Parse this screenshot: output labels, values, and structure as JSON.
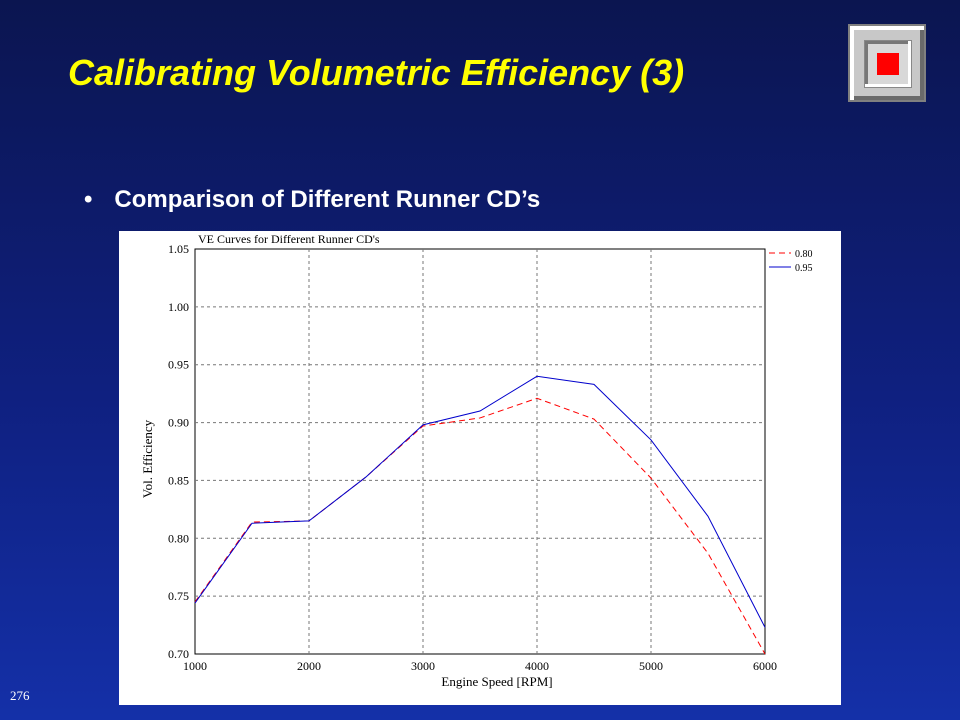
{
  "slide": {
    "title": "Calibrating Volumetric Efficiency (3)",
    "bullet_marker": "•",
    "bullet_text": "Comparison of Different Runner CD’s",
    "page_number": "276",
    "nav_button_icon": "stop-icon",
    "colors": {
      "title": "#ffff00",
      "nav_stop": "#ff0000"
    }
  },
  "chart_data": {
    "type": "line",
    "title": "VE Curves for Different Runner CD's",
    "xlabel": "Engine Speed [RPM]",
    "ylabel": "Vol. Efficiency",
    "xlim": [
      1000,
      6000
    ],
    "ylim": [
      0.7,
      1.05
    ],
    "xticks": [
      1000,
      2000,
      3000,
      4000,
      5000,
      6000
    ],
    "xtick_labels": [
      "1000",
      "2000",
      "3000",
      "4000",
      "5000",
      "6000"
    ],
    "yticks": [
      0.7,
      0.75,
      0.8,
      0.85,
      0.9,
      0.95,
      1.0,
      1.05
    ],
    "ytick_labels": [
      "0.70",
      "0.75",
      "0.80",
      "0.85",
      "0.90",
      "0.95",
      "1.00",
      "1.05"
    ],
    "grid": true,
    "legend_position": "top-right",
    "x": [
      1000,
      1500,
      2000,
      2500,
      3000,
      3500,
      4000,
      4500,
      5000,
      5500,
      6000
    ],
    "series": [
      {
        "name": "0.80",
        "color": "#ff0000",
        "dash": "dashed",
        "values": [
          0.745,
          0.814,
          0.815,
          0.853,
          0.897,
          0.904,
          0.921,
          0.903,
          0.852,
          0.787,
          0.7
        ]
      },
      {
        "name": "0.95",
        "color": "#0000cc",
        "dash": "solid",
        "values": [
          0.744,
          0.813,
          0.815,
          0.853,
          0.898,
          0.91,
          0.94,
          0.933,
          0.885,
          0.819,
          0.723
        ]
      }
    ]
  }
}
